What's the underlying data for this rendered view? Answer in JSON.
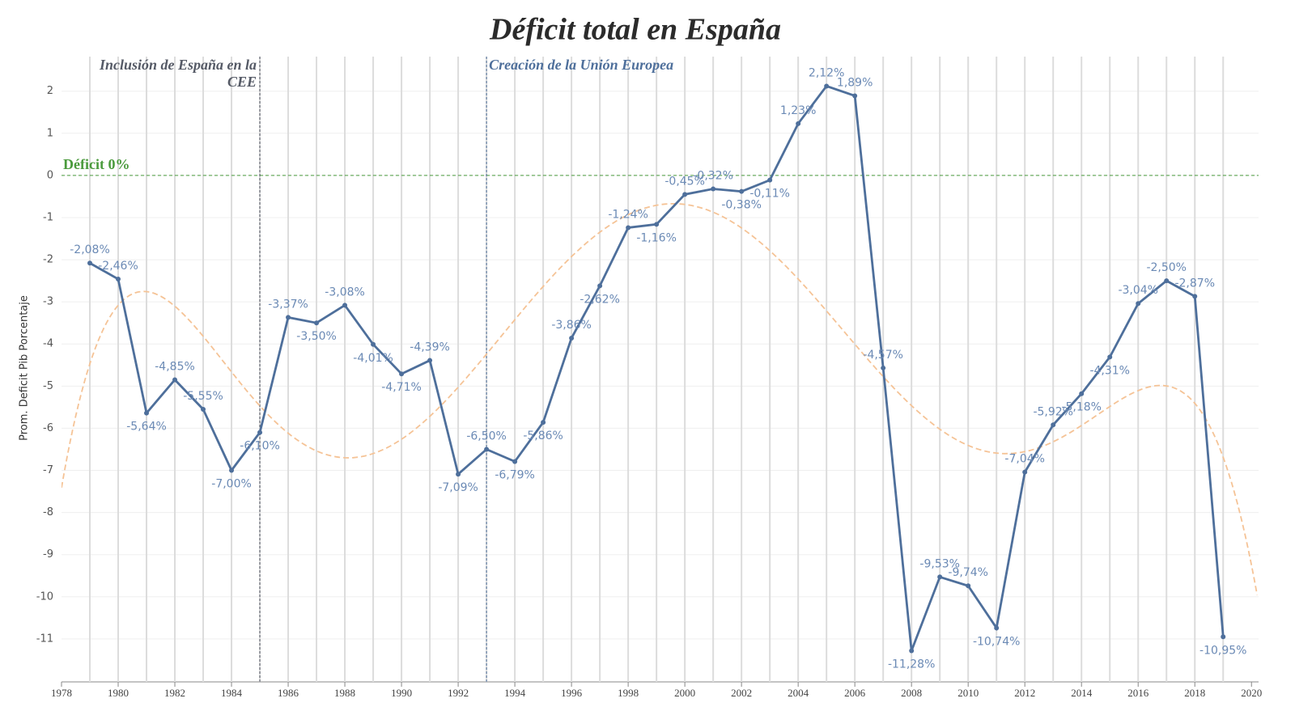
{
  "chart_data": {
    "type": "line",
    "title": "Déficit total en España",
    "y_label": "Prom. Deficit Pib Porcentaje",
    "x": [
      1979,
      1980,
      1981,
      1982,
      1983,
      1984,
      1985,
      1986,
      1987,
      1988,
      1989,
      1990,
      1991,
      1992,
      1993,
      1994,
      1995,
      1996,
      1997,
      1998,
      1999,
      2000,
      2001,
      2002,
      2003,
      2004,
      2005,
      2006,
      2007,
      2008,
      2009,
      2010,
      2011,
      2012,
      2013,
      2014,
      2015,
      2016,
      2017,
      2018,
      2019
    ],
    "series": [
      {
        "name": "Déficit",
        "color": "#4e6f9b",
        "values": [
          -2.08,
          -2.46,
          -5.64,
          -4.85,
          -5.55,
          -7.0,
          -6.1,
          -3.37,
          -3.5,
          -3.08,
          -4.01,
          -4.71,
          -4.39,
          -7.09,
          -6.5,
          -6.79,
          -5.86,
          -3.86,
          -2.62,
          -1.24,
          -1.16,
          -0.45,
          -0.32,
          -0.38,
          -0.11,
          1.23,
          2.12,
          1.89,
          -4.57,
          -11.28,
          -9.53,
          -9.74,
          -10.74,
          -7.04,
          -5.92,
          -5.18,
          -4.31,
          -3.04,
          -2.5,
          -2.87,
          -10.95
        ],
        "value_labels": [
          "-2,08%",
          "-2,46%",
          "-5,64%",
          "-4,85%",
          "-5,55%",
          "-7,00%",
          "-6,10%",
          "-3,37%",
          "-3,50%",
          "-3,08%",
          "-4,01%",
          "-4,71%",
          "-4,39%",
          "-7,09%",
          "-6,50%",
          "-6,79%",
          "-5,86%",
          "-3,86%",
          "-2,62%",
          "-1,24%",
          "-1,16%",
          "-0,45%",
          "-0,32%",
          "-0,38%",
          "-0,11%",
          "1,23%",
          "2,12%",
          "1,89%",
          "-4,57%",
          "-11,28%",
          "-9,53%",
          "-9,74%",
          "-10,74%",
          "-7,04%",
          "-5,92%",
          "-5,18%",
          "-4,31%",
          "-3,04%",
          "-2,50%",
          "-2,87%",
          "-10,95%"
        ]
      }
    ],
    "trend_color": "#f5c396",
    "xlim": [
      1978,
      2020.25
    ],
    "xticks": [
      1978,
      1980,
      1982,
      1984,
      1986,
      1988,
      1990,
      1992,
      1994,
      1996,
      1998,
      2000,
      2002,
      2004,
      2006,
      2008,
      2010,
      2012,
      2014,
      2016,
      2018,
      2020
    ],
    "ylim": [
      -12.02,
      2.82
    ],
    "yticks": [
      -11,
      -10,
      -9,
      -8,
      -7,
      -6,
      -5,
      -4,
      -3,
      -2,
      -1,
      0,
      1,
      2
    ],
    "reference_lines": [
      {
        "axis": "y",
        "value": 0,
        "label": "Déficit 0%",
        "color": "#4a9a3c"
      },
      {
        "axis": "x",
        "value": 1985,
        "label": "Inclusión de España en la CEE",
        "color": "#555a66"
      },
      {
        "axis": "x",
        "value": 1993,
        "label": "Creación de la Unión Europea",
        "color": "#4e6f9b"
      }
    ]
  }
}
